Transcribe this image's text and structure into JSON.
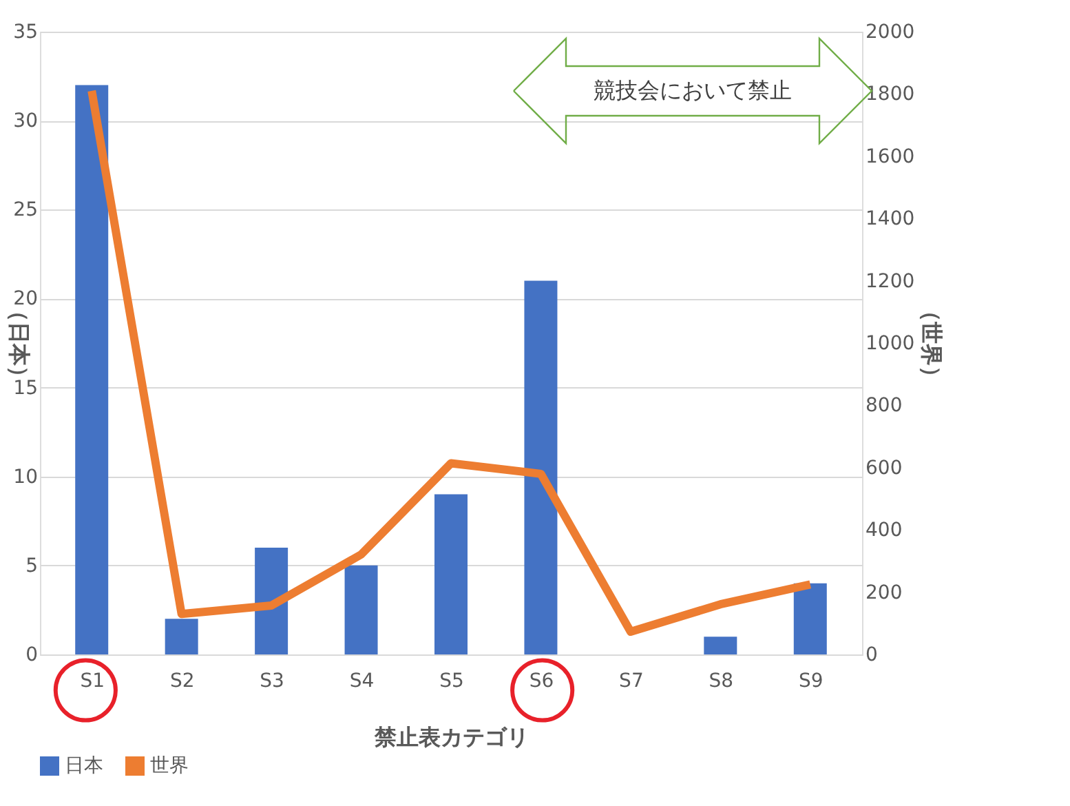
{
  "chart_data": {
    "type": "bar",
    "xlabel": "禁止表カテゴリ",
    "ylabel": "（日本）",
    "y2label": "（世界）",
    "categories": [
      "S1",
      "S2",
      "S3",
      "S4",
      "S5",
      "S6",
      "S7",
      "S8",
      "S9"
    ],
    "series": [
      {
        "name": "日本",
        "color": "#4472c4",
        "values": [
          32,
          2,
          6,
          5,
          9,
          21,
          0,
          1,
          4
        ]
      },
      {
        "name": "世界",
        "type": "line",
        "axis": "y2",
        "color": "#ed7d31",
        "values": [
          1810,
          130,
          157,
          321,
          614,
          580,
          73,
          161,
          225
        ]
      }
    ],
    "ylim": [
      0,
      35
    ],
    "yticks": [
      0,
      5,
      10,
      15,
      20,
      25,
      30,
      35
    ],
    "y2lim": [
      0,
      2000
    ],
    "y2ticks": [
      0,
      200,
      400,
      600,
      800,
      1000,
      1200,
      1400,
      1600,
      1800,
      2000
    ],
    "annotations": [
      "競技会において禁止"
    ],
    "grid": "y",
    "legend": "bottom",
    "line_style": "solid",
    "marker": "none"
  }
}
